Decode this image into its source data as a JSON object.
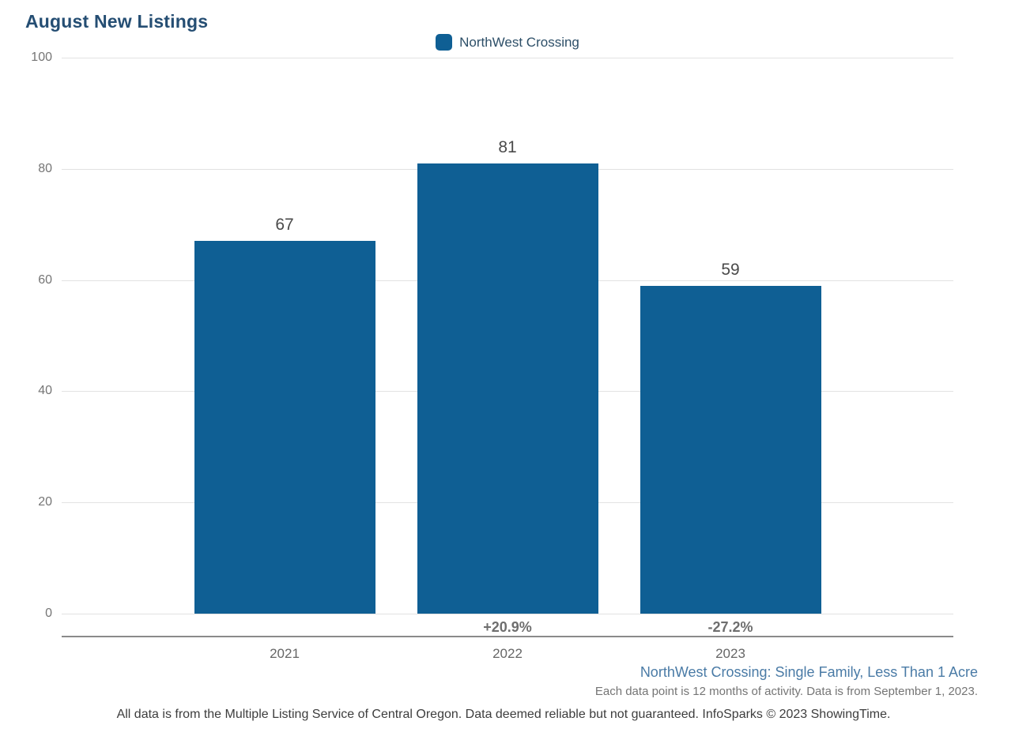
{
  "page": {
    "title": "August New Listings"
  },
  "legend": {
    "label": "NorthWest Crossing",
    "swatch_color": "#0F5F94"
  },
  "chart_data": {
    "type": "bar",
    "title": "August New Listings",
    "series_name": "NorthWest Crossing",
    "categories": [
      "2021",
      "2022",
      "2023"
    ],
    "values": [
      67,
      81,
      59
    ],
    "value_labels": [
      "67",
      "81",
      "59"
    ],
    "pct_change_labels": [
      "",
      "+20.9%",
      "-27.2%"
    ],
    "y_ticks": [
      100,
      80,
      60,
      40,
      20,
      0
    ],
    "ylim": [
      0,
      100
    ],
    "xlabel": "",
    "ylabel": "",
    "grid": true,
    "legend_position": "top-center",
    "bar_color": "#0F5F94"
  },
  "footer": {
    "series_note": "NorthWest Crossing: Single Family, Less Than 1 Acre",
    "data_note": "Each data point is 12 months of activity. Data is from September 1, 2023.",
    "disclaimer": "All data is from the Multiple Listing Service of Central Oregon. Data deemed reliable but not guaranteed. InfoSparks © 2023 ShowingTime."
  }
}
